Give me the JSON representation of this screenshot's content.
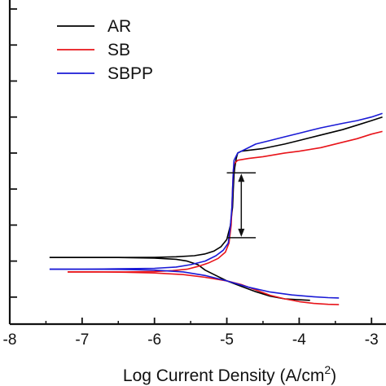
{
  "chart_data": {
    "type": "line",
    "xlabel": "Log Current Density (A/cm",
    "xlabel_superscript": "2",
    "xlabel_suffix": ")",
    "ylabel": "",
    "xlim": [
      -8,
      -2.8
    ],
    "ylim": [
      -0.45,
      1.35
    ],
    "x_ticks": [
      -8,
      -7,
      -6,
      -5,
      -4,
      -3
    ],
    "x_tick_labels": [
      "-8",
      "-7",
      "-6",
      "-5",
      "-4",
      "-3"
    ],
    "y_ticks": [
      -0.3,
      -0.1,
      0.1,
      0.3,
      0.5,
      0.7,
      0.9,
      1.1,
      1.3
    ],
    "grid": false,
    "legend": {
      "placement": "top-left",
      "entries": [
        "AR",
        "SB",
        "SBPP"
      ]
    },
    "series": [
      {
        "name": "AR",
        "color": "#000000",
        "branches": [
          [
            [
              -7.45,
              -0.08
            ],
            [
              -7.0,
              -0.08
            ],
            [
              -6.5,
              -0.08
            ],
            [
              -6.0,
              -0.083
            ],
            [
              -5.7,
              -0.09
            ],
            [
              -5.55,
              -0.1
            ],
            [
              -5.4,
              -0.12
            ],
            [
              -5.3,
              -0.15
            ],
            [
              -5.15,
              -0.18
            ],
            [
              -5.0,
              -0.21
            ],
            [
              -4.8,
              -0.24
            ],
            [
              -4.6,
              -0.27
            ],
            [
              -4.4,
              -0.295
            ],
            [
              -4.2,
              -0.31
            ],
            [
              -4.0,
              -0.315
            ],
            [
              -3.85,
              -0.318
            ]
          ],
          [
            [
              -7.45,
              -0.08
            ],
            [
              -7.0,
              -0.08
            ],
            [
              -6.5,
              -0.08
            ],
            [
              -6.0,
              -0.079
            ],
            [
              -5.7,
              -0.076
            ],
            [
              -5.45,
              -0.07
            ],
            [
              -5.3,
              -0.06
            ],
            [
              -5.18,
              -0.045
            ],
            [
              -5.08,
              -0.02
            ],
            [
              -5.0,
              0.02
            ],
            [
              -4.95,
              0.1
            ],
            [
              -4.92,
              0.2
            ],
            [
              -4.91,
              0.3
            ],
            [
              -4.9,
              0.38
            ],
            [
              -4.89,
              0.42
            ],
            [
              -4.87,
              0.47
            ],
            [
              -4.85,
              0.5
            ],
            [
              -4.8,
              0.51
            ],
            [
              -4.7,
              0.515
            ],
            [
              -4.5,
              0.525
            ],
            [
              -4.2,
              0.55
            ],
            [
              -4.0,
              0.57
            ],
            [
              -3.7,
              0.6
            ],
            [
              -3.4,
              0.63
            ],
            [
              -3.2,
              0.655
            ],
            [
              -3.0,
              0.68
            ],
            [
              -2.85,
              0.7
            ]
          ]
        ]
      },
      {
        "name": "SB",
        "color": "#e8141a",
        "branches": [
          [
            [
              -7.2,
              -0.16
            ],
            [
              -6.8,
              -0.16
            ],
            [
              -6.4,
              -0.162
            ],
            [
              -6.0,
              -0.166
            ],
            [
              -5.6,
              -0.175
            ],
            [
              -5.3,
              -0.19
            ],
            [
              -5.0,
              -0.21
            ],
            [
              -4.8,
              -0.23
            ],
            [
              -4.6,
              -0.26
            ],
            [
              -4.4,
              -0.29
            ],
            [
              -4.2,
              -0.31
            ],
            [
              -4.0,
              -0.325
            ],
            [
              -3.8,
              -0.335
            ],
            [
              -3.6,
              -0.34
            ],
            [
              -3.45,
              -0.342
            ]
          ],
          [
            [
              -7.2,
              -0.16
            ],
            [
              -6.8,
              -0.16
            ],
            [
              -6.4,
              -0.16
            ],
            [
              -6.0,
              -0.158
            ],
            [
              -5.75,
              -0.153
            ],
            [
              -5.55,
              -0.145
            ],
            [
              -5.4,
              -0.13
            ],
            [
              -5.25,
              -0.11
            ],
            [
              -5.12,
              -0.085
            ],
            [
              -5.02,
              -0.05
            ],
            [
              -4.97,
              0.0
            ],
            [
              -4.94,
              0.1
            ],
            [
              -4.93,
              0.2
            ],
            [
              -4.92,
              0.3
            ],
            [
              -4.91,
              0.4
            ],
            [
              -4.9,
              0.44
            ],
            [
              -4.85,
              0.46
            ],
            [
              -4.7,
              0.47
            ],
            [
              -4.5,
              0.48
            ],
            [
              -4.2,
              0.5
            ],
            [
              -4.0,
              0.51
            ],
            [
              -3.7,
              0.53
            ],
            [
              -3.4,
              0.56
            ],
            [
              -3.2,
              0.58
            ],
            [
              -3.0,
              0.605
            ],
            [
              -2.85,
              0.62
            ]
          ]
        ]
      },
      {
        "name": "SBPP",
        "color": "#1a1ad6",
        "branches": [
          [
            [
              -7.45,
              -0.145
            ],
            [
              -7.0,
              -0.145
            ],
            [
              -6.5,
              -0.146
            ],
            [
              -6.0,
              -0.15
            ],
            [
              -5.6,
              -0.16
            ],
            [
              -5.3,
              -0.18
            ],
            [
              -5.0,
              -0.21
            ],
            [
              -4.7,
              -0.245
            ],
            [
              -4.4,
              -0.272
            ],
            [
              -4.1,
              -0.288
            ],
            [
              -3.8,
              -0.298
            ],
            [
              -3.6,
              -0.303
            ],
            [
              -3.45,
              -0.305
            ]
          ],
          [
            [
              -7.45,
              -0.145
            ],
            [
              -7.0,
              -0.145
            ],
            [
              -6.5,
              -0.143
            ],
            [
              -6.0,
              -0.14
            ],
            [
              -5.7,
              -0.133
            ],
            [
              -5.5,
              -0.12
            ],
            [
              -5.3,
              -0.1
            ],
            [
              -5.15,
              -0.07
            ],
            [
              -5.05,
              -0.04
            ],
            [
              -4.98,
              0.0
            ],
            [
              -4.95,
              0.1
            ],
            [
              -4.93,
              0.2
            ],
            [
              -4.92,
              0.3
            ],
            [
              -4.91,
              0.4
            ],
            [
              -4.9,
              0.46
            ],
            [
              -4.85,
              0.5
            ],
            [
              -4.75,
              0.52
            ],
            [
              -4.6,
              0.55
            ],
            [
              -4.4,
              0.57
            ],
            [
              -4.2,
              0.59
            ],
            [
              -4.0,
              0.61
            ],
            [
              -3.7,
              0.64
            ],
            [
              -3.4,
              0.665
            ],
            [
              -3.2,
              0.68
            ],
            [
              -3.0,
              0.7
            ],
            [
              -2.85,
              0.72
            ]
          ]
        ]
      }
    ],
    "annotation": {
      "type": "double-arrow",
      "x": -4.8,
      "y_top": 0.39,
      "y_bottom": 0.03,
      "cap_half_width": 0.2
    }
  }
}
